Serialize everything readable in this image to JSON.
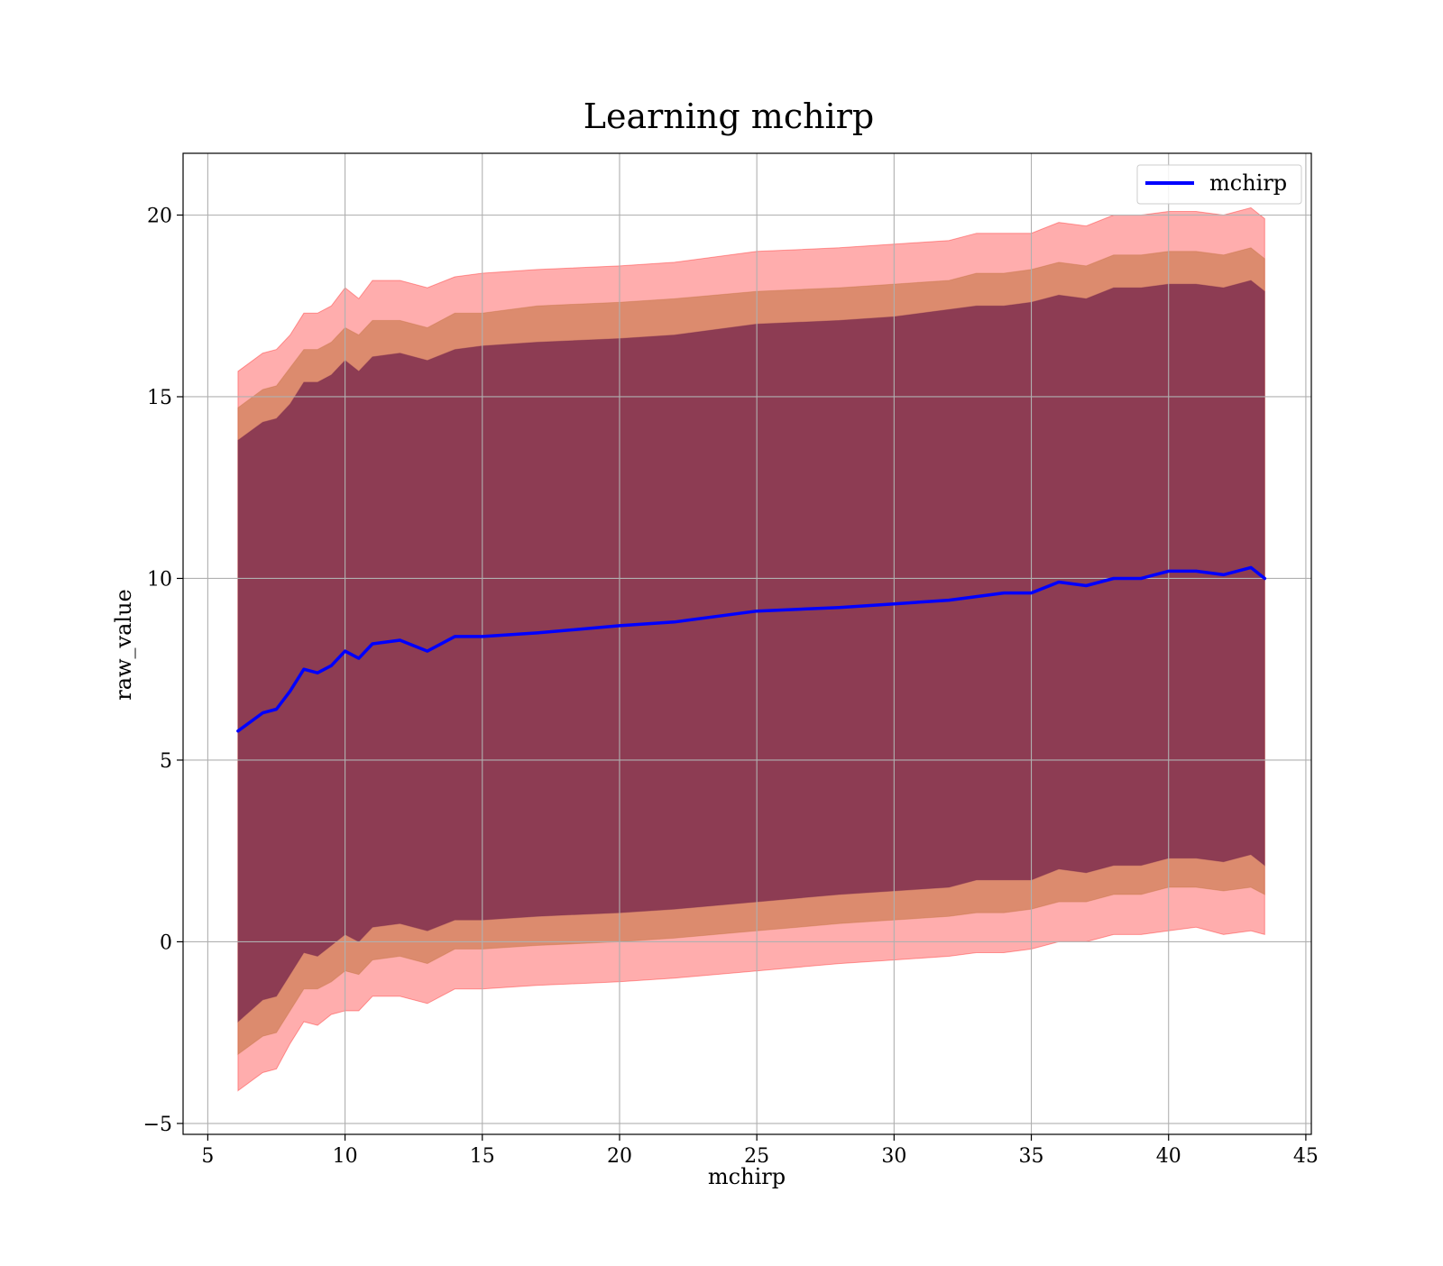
{
  "chart_data": {
    "type": "line",
    "title": "Learning mchirp",
    "xlabel": "mchirp",
    "ylabel": "raw_value",
    "xlim": [
      4.1,
      45.2
    ],
    "ylim": [
      -5.3,
      21.7
    ],
    "xticks": [
      5,
      10,
      15,
      20,
      25,
      30,
      35,
      40,
      45
    ],
    "xtick_labels": [
      "5",
      "10",
      "15",
      "20",
      "25",
      "30",
      "35",
      "40",
      "45"
    ],
    "yticks": [
      -5,
      0,
      5,
      10,
      15,
      20
    ],
    "ytick_labels": [
      "−5",
      "0",
      "5",
      "10",
      "15",
      "20"
    ],
    "grid": true,
    "legend_position": "top-right",
    "colors": {
      "line": "#0000ff",
      "band_outer": "#ff0000",
      "band_middle": "#c0703a",
      "band_inner": "#7b2b4d",
      "grid": "#b0b0b0"
    },
    "x": [
      6.1,
      7.0,
      7.5,
      8.0,
      8.5,
      9.0,
      9.5,
      10.0,
      10.5,
      11.0,
      12.0,
      13.0,
      14.0,
      15.0,
      17.0,
      20.0,
      22.0,
      25.0,
      28.0,
      30.0,
      32.0,
      33.0,
      34.0,
      35.0,
      36.0,
      37.0,
      38.0,
      39.0,
      40.0,
      41.0,
      42.0,
      43.0,
      43.5
    ],
    "series": [
      {
        "name": "mchirp",
        "role": "mean",
        "values": [
          5.8,
          6.3,
          6.4,
          6.9,
          7.5,
          7.4,
          7.6,
          8.0,
          7.8,
          8.2,
          8.3,
          8.0,
          8.4,
          8.4,
          8.5,
          8.7,
          8.8,
          9.1,
          9.2,
          9.3,
          9.4,
          9.5,
          9.6,
          9.6,
          9.9,
          9.8,
          10.0,
          10.0,
          10.2,
          10.2,
          10.1,
          10.3,
          10.0
        ]
      }
    ],
    "bands": [
      {
        "role": "outer",
        "lower": [
          -4.1,
          -3.6,
          -3.5,
          -2.8,
          -2.2,
          -2.3,
          -2.0,
          -1.9,
          -1.9,
          -1.5,
          -1.5,
          -1.7,
          -1.3,
          -1.3,
          -1.2,
          -1.1,
          -1.0,
          -0.8,
          -0.6,
          -0.5,
          -0.4,
          -0.3,
          -0.3,
          -0.2,
          0.0,
          0.0,
          0.2,
          0.2,
          0.3,
          0.4,
          0.2,
          0.3,
          0.2
        ],
        "upper": [
          15.7,
          16.2,
          16.3,
          16.7,
          17.3,
          17.3,
          17.5,
          18.0,
          17.7,
          18.2,
          18.2,
          18.0,
          18.3,
          18.4,
          18.5,
          18.6,
          18.7,
          19.0,
          19.1,
          19.2,
          19.3,
          19.5,
          19.5,
          19.5,
          19.8,
          19.7,
          20.0,
          20.0,
          20.1,
          20.1,
          20.0,
          20.2,
          19.9
        ]
      },
      {
        "role": "middle",
        "lower": [
          -3.1,
          -2.6,
          -2.5,
          -1.9,
          -1.3,
          -1.3,
          -1.1,
          -0.8,
          -0.9,
          -0.5,
          -0.4,
          -0.6,
          -0.2,
          -0.2,
          -0.1,
          0.0,
          0.1,
          0.3,
          0.5,
          0.6,
          0.7,
          0.8,
          0.8,
          0.9,
          1.1,
          1.1,
          1.3,
          1.3,
          1.5,
          1.5,
          1.4,
          1.5,
          1.3
        ],
        "upper": [
          14.7,
          15.2,
          15.3,
          15.8,
          16.3,
          16.3,
          16.5,
          16.9,
          16.7,
          17.1,
          17.1,
          16.9,
          17.3,
          17.3,
          17.5,
          17.6,
          17.7,
          17.9,
          18.0,
          18.1,
          18.2,
          18.4,
          18.4,
          18.5,
          18.7,
          18.6,
          18.9,
          18.9,
          19.0,
          19.0,
          18.9,
          19.1,
          18.8
        ]
      },
      {
        "role": "inner",
        "lower": [
          -2.2,
          -1.6,
          -1.5,
          -0.9,
          -0.3,
          -0.4,
          -0.1,
          0.2,
          0.0,
          0.4,
          0.5,
          0.3,
          0.6,
          0.6,
          0.7,
          0.8,
          0.9,
          1.1,
          1.3,
          1.4,
          1.5,
          1.7,
          1.7,
          1.7,
          2.0,
          1.9,
          2.1,
          2.1,
          2.3,
          2.3,
          2.2,
          2.4,
          2.1
        ],
        "upper": [
          13.8,
          14.3,
          14.4,
          14.8,
          15.4,
          15.4,
          15.6,
          16.0,
          15.7,
          16.1,
          16.2,
          16.0,
          16.3,
          16.4,
          16.5,
          16.6,
          16.7,
          17.0,
          17.1,
          17.2,
          17.4,
          17.5,
          17.5,
          17.6,
          17.8,
          17.7,
          18.0,
          18.0,
          18.1,
          18.1,
          18.0,
          18.2,
          17.9
        ]
      }
    ]
  }
}
